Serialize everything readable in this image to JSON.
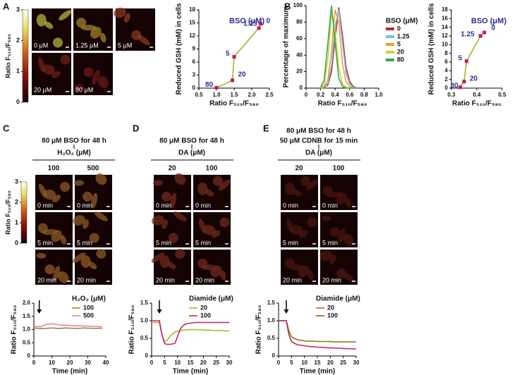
{
  "panel_labels": [
    "A",
    "B",
    "C",
    "D",
    "E"
  ],
  "colorbars": [
    {
      "title": "Ratio F₅₁₀/F₅₈₀",
      "lim": [
        0,
        3
      ],
      "ticks": [
        0,
        1,
        2,
        3
      ]
    },
    {
      "title": "Ratio F₅₁₀/F₅₈₀",
      "lim": [
        0,
        3
      ],
      "ticks": [
        0,
        1,
        2,
        3
      ]
    }
  ],
  "image_sets": {
    "A": {
      "labels": [
        "0 μM",
        "1.25 μM",
        "5 μM",
        "20 μM",
        "80 μM"
      ]
    },
    "C": {
      "header": [
        "80 μM BSO for 48 h"
      ],
      "factor": "H₂O₂ (μM)",
      "columns": [
        "100",
        "500"
      ],
      "times": [
        "0 min",
        "5 min",
        "20 min"
      ]
    },
    "D": {
      "header": [
        "80 μM BSO for 48 h"
      ],
      "factor": "DA (μM)",
      "columns": [
        "20",
        "100"
      ],
      "times": [
        "0 min",
        "5 min",
        "20 min"
      ]
    },
    "E": {
      "header": [
        "80 μM BSO for 48 h",
        "50 μM CDNB for 15 min"
      ],
      "factor": "DA (μM)",
      "columns": [
        "20",
        "100"
      ],
      "times": [
        "0 min",
        "5 min",
        "20 min"
      ]
    }
  },
  "chart_data": [
    {
      "type": "scatter",
      "legend_title": "BSO (μM)",
      "xlabel": "Ratio F₅₁₀/F₅₈₀",
      "ylabel": "Reduced GSH (mM) in cells",
      "x": [
        2.25,
        2.2,
        1.5,
        1.45,
        1.0
      ],
      "values": [
        14.8,
        13.8,
        7.2,
        1.8,
        0.1
      ],
      "point_labels": [
        "0",
        "1.25",
        "5",
        "20",
        "80"
      ],
      "color": "#c2185b",
      "line_color": "#9bb41e",
      "xlim": [
        0.5,
        2.5
      ],
      "xticks": [
        0.5,
        {
          "value": 1,
          "label": "1.0"
        },
        1.5,
        {
          "value": 2,
          "label": "2.0"
        },
        2.5
      ],
      "ylim": [
        0,
        18
      ],
      "yticks": [
        0,
        3,
        6,
        9,
        12,
        15,
        18
      ]
    },
    {
      "type": "line",
      "legend_title": "BSO (μM)",
      "xlabel": "Ratio F₅₁₀/F₅₈₀",
      "ylabel": "Percentage of maximum",
      "x": [
        0.2,
        0.25,
        0.3,
        0.35,
        0.4,
        0.45,
        0.5,
        0.55,
        0.6,
        0.65,
        0.7
      ],
      "series": [
        {
          "name": "0",
          "color": "#c0282d",
          "values": [
            0,
            1,
            4,
            20,
            60,
            98,
            65,
            25,
            8,
            2,
            0
          ]
        },
        {
          "name": "1.25",
          "color": "#6fc6e8",
          "values": [
            0,
            1,
            6,
            28,
            75,
            95,
            55,
            18,
            5,
            1,
            0
          ]
        },
        {
          "name": "5",
          "color": "#f39c32",
          "values": [
            0,
            2,
            10,
            45,
            95,
            80,
            30,
            8,
            2,
            0,
            0
          ]
        },
        {
          "name": "20",
          "color": "#c8d23c",
          "values": [
            0,
            5,
            35,
            90,
            70,
            25,
            5,
            1,
            0,
            0,
            0
          ]
        },
        {
          "name": "80",
          "color": "#3aa646",
          "values": [
            1,
            10,
            55,
            100,
            55,
            12,
            2,
            0,
            0,
            0,
            0
          ]
        }
      ],
      "xlim": [
        0,
        1
      ],
      "xticks": [
        0,
        0.2,
        0.4,
        0.6,
        0.8,
        {
          "value": 1,
          "label": "1.0"
        }
      ],
      "ylim": [
        0,
        100
      ],
      "yticks": [
        0,
        20,
        40,
        60,
        80,
        100
      ]
    },
    {
      "type": "scatter",
      "legend_title": "BSO (μM)",
      "xlabel": "Ratio F₅₁₀/F₅₈₀",
      "ylabel": "Reduced GSH (mM) in cells",
      "x": [
        0.43,
        0.415,
        0.36,
        0.35,
        0.335
      ],
      "values": [
        12.8,
        12.0,
        6.2,
        1.5,
        0.2
      ],
      "point_labels": [
        "0",
        "1.25",
        "5",
        "20",
        "80"
      ],
      "color": "#c2185b",
      "line_color": "#9bb41e",
      "xlim": [
        0.3,
        0.5
      ],
      "xticks": [
        0.3,
        0.4,
        0.5
      ],
      "ylim": [
        0,
        18
      ],
      "yticks": [
        0,
        2,
        4,
        6,
        8,
        10,
        12,
        14,
        16,
        18
      ]
    },
    {
      "type": "line",
      "legend_title": "H₂O₂ (μM)",
      "xlabel": "Time (min)",
      "ylabel": "Ratio F₅₁₀/F₅₈₀",
      "arrow_x": 3,
      "x": [
        0,
        2,
        4,
        6,
        8,
        10,
        12,
        14,
        16,
        18,
        20,
        22,
        24,
        26,
        28,
        30,
        32,
        34,
        36,
        38
      ],
      "series": [
        {
          "name": "100",
          "color": "#8a8a1e",
          "values": [
            1.05,
            1.05,
            1.03,
            1.04,
            1.05,
            1.06,
            1.05,
            1.04,
            1.05,
            1.06,
            1.05,
            1.05,
            1.04,
            1.05,
            1.06,
            1.05,
            1.05,
            1.04,
            1.05,
            1.05
          ]
        },
        {
          "name": "500",
          "color": "#e07ab4",
          "values": [
            1.1,
            1.12,
            1.1,
            1.18,
            1.2,
            1.22,
            1.2,
            1.18,
            1.17,
            1.16,
            1.15,
            1.15,
            1.14,
            1.14,
            1.13,
            1.13,
            1.12,
            1.12,
            1.11,
            1.11
          ]
        }
      ],
      "xlim": [
        0,
        40
      ],
      "xticks": [
        0,
        10,
        20,
        30,
        40
      ],
      "ylim": [
        0,
        2
      ],
      "yticks": [
        0,
        0.5,
        {
          "value": 1,
          "label": "1.0"
        },
        1.5,
        {
          "value": 2,
          "label": "2.0"
        }
      ]
    },
    {
      "type": "line",
      "legend_title": "Diamide (μM)",
      "xlabel": "Time (min)",
      "ylabel": "Ratio F₅₁₀/F₅₈₀",
      "arrow_x": 3,
      "x": [
        0,
        1,
        2,
        3,
        4,
        5,
        6,
        7,
        8,
        9,
        10,
        11,
        12,
        13,
        14,
        15,
        16,
        17,
        18,
        19,
        20,
        21,
        22,
        23,
        24,
        25,
        26,
        27,
        28,
        29,
        30
      ],
      "series": [
        {
          "name": "20",
          "color": "#a4b520",
          "values": [
            0.95,
            0.95,
            0.95,
            0.95,
            0.6,
            0.4,
            0.45,
            0.55,
            0.62,
            0.68,
            0.7,
            0.72,
            0.73,
            0.74,
            0.74,
            0.75,
            0.75,
            0.75,
            0.74,
            0.74,
            0.74,
            0.73,
            0.73,
            0.73,
            0.72,
            0.72,
            0.72,
            0.72,
            0.72,
            0.71,
            0.71
          ]
        },
        {
          "name": "100",
          "color": "#c0245e",
          "values": [
            1.0,
            1.0,
            1.0,
            1.0,
            0.6,
            0.35,
            0.33,
            0.33,
            0.34,
            0.36,
            0.55,
            0.75,
            0.85,
            0.9,
            0.92,
            0.93,
            0.94,
            0.95,
            0.95,
            0.95,
            0.95,
            0.95,
            0.95,
            0.95,
            0.95,
            0.95,
            0.95,
            0.95,
            0.95,
            0.95,
            0.95
          ]
        }
      ],
      "xlim": [
        0,
        30
      ],
      "xticks": [
        0,
        5,
        10,
        15,
        20,
        25,
        30
      ],
      "ylim": [
        0,
        1.5
      ],
      "yticks": [
        0,
        0.5,
        {
          "value": 1,
          "label": "1.0"
        },
        1.5
      ]
    },
    {
      "type": "line",
      "legend_title": "Diamide (μM)",
      "xlabel": "Time (min)",
      "ylabel": "Ratio F₅₁₀/F₅₈₀",
      "arrow_x": 3,
      "x": [
        0,
        1,
        2,
        3,
        4,
        5,
        6,
        7,
        8,
        9,
        10,
        11,
        12,
        13,
        14,
        15,
        16,
        17,
        18,
        19,
        20,
        21,
        22,
        23,
        24,
        25,
        26,
        27,
        28,
        29,
        30
      ],
      "series": [
        {
          "name": "20",
          "color": "#7a7a10",
          "values": [
            1.0,
            1.0,
            1.0,
            1.0,
            0.7,
            0.55,
            0.5,
            0.47,
            0.45,
            0.44,
            0.43,
            0.42,
            0.42,
            0.42,
            0.42,
            0.41,
            0.41,
            0.41,
            0.41,
            0.41,
            0.41,
            0.4,
            0.4,
            0.4,
            0.4,
            0.4,
            0.4,
            0.4,
            0.4,
            0.4,
            0.4
          ]
        },
        {
          "name": "100",
          "color": "#c0245e",
          "values": [
            1.0,
            1.0,
            1.0,
            1.0,
            0.6,
            0.42,
            0.36,
            0.33,
            0.31,
            0.3,
            0.29,
            0.28,
            0.27,
            0.26,
            0.26,
            0.25,
            0.25,
            0.24,
            0.24,
            0.23,
            0.23,
            0.23,
            0.22,
            0.22,
            0.22,
            0.21,
            0.21,
            0.21,
            0.2,
            0.2,
            0.2
          ]
        }
      ],
      "xlim": [
        0,
        30
      ],
      "xticks": [
        0,
        5,
        10,
        15,
        20,
        25,
        30
      ],
      "ylim": [
        0,
        1.5
      ],
      "yticks": [
        0,
        0.5,
        {
          "value": 1,
          "label": "1.0"
        },
        1.5
      ]
    }
  ]
}
